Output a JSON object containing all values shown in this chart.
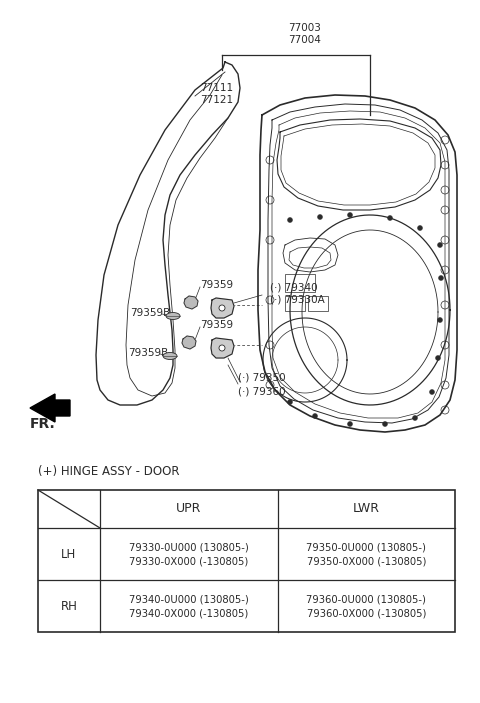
{
  "bg_color": "#ffffff",
  "line_color": "#2a2a2a",
  "fig_width": 4.8,
  "fig_height": 7.03,
  "dpi": 100,
  "table": {
    "title": "(+) HINGE ASSY - DOOR",
    "headers": [
      "",
      "UPR",
      "LWR"
    ],
    "rows": [
      [
        "LH",
        "79330-0U000 (130805-)\n79330-0X000 (-130805)",
        "79350-0U000 (130805-)\n79350-0X000 (-130805)"
      ],
      [
        "RH",
        "79340-0U000 (130805-)\n79340-0X000 (-130805)",
        "79360-0U000 (130805-)\n79360-0X000 (-130805)"
      ]
    ]
  }
}
